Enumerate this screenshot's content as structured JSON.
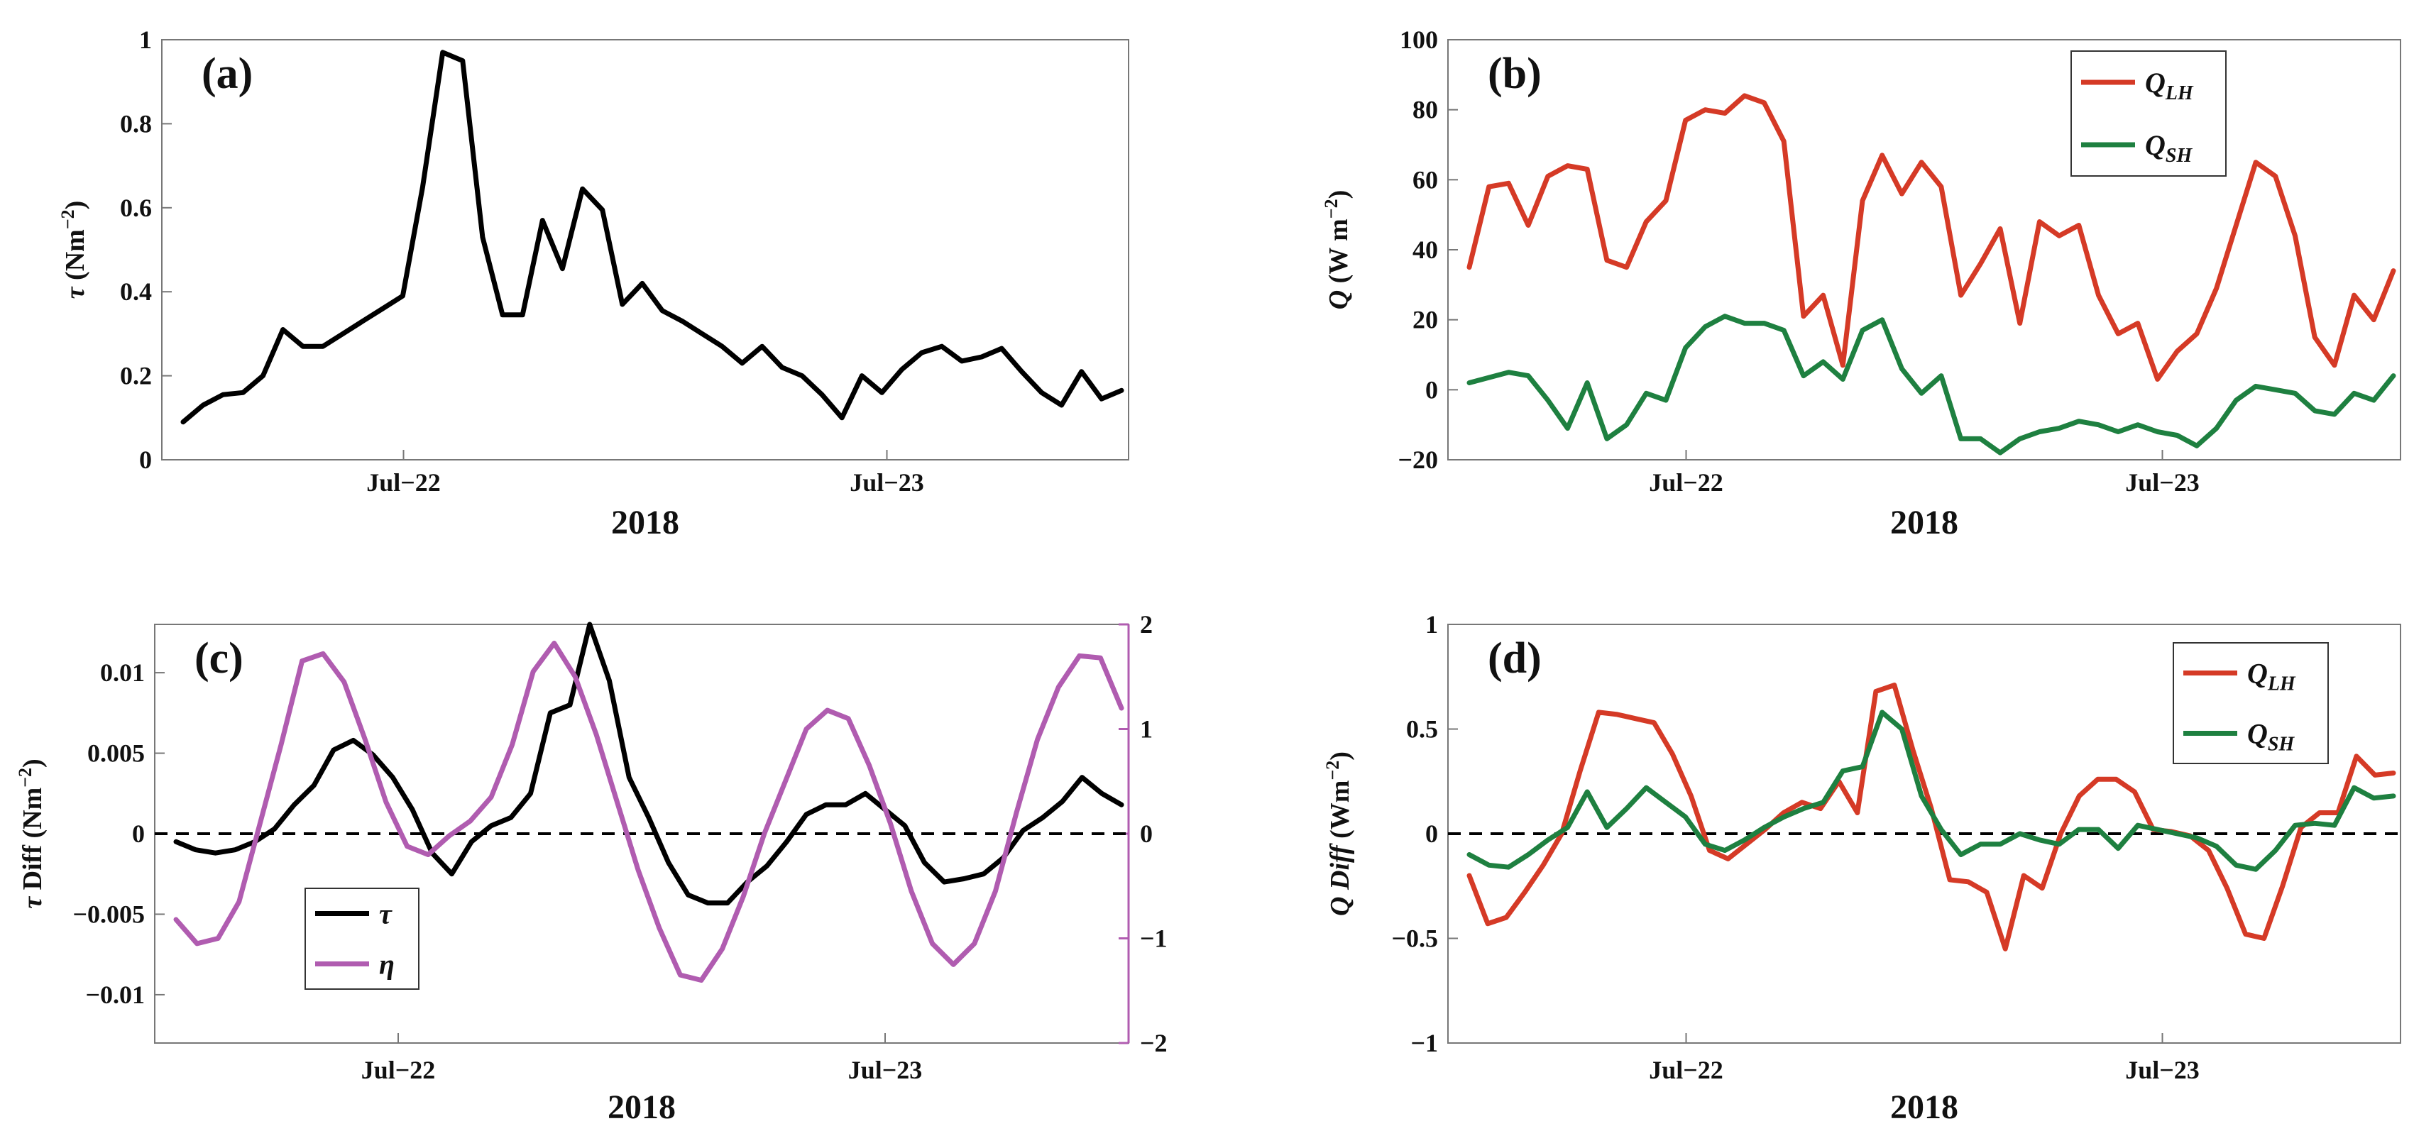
{
  "colors": {
    "black": "#000000",
    "red": "#d53a26",
    "green": "#1e8040",
    "purple": "#b05cb0",
    "axis": "#777777"
  },
  "chart_data": [
    {
      "id": "a",
      "type": "line",
      "panel_label": "(a)",
      "xlabel": "2018",
      "ylabel_main": "τ",
      "ylabel_unit": " (Nm",
      "ylabel_exp": "−2",
      "ylabel_close": ")",
      "xticks": [
        {
          "t": 0.25,
          "label": "Jul−22"
        },
        {
          "t": 0.75,
          "label": "Jul−23"
        }
      ],
      "ylim": [
        0,
        1
      ],
      "yticks": [
        {
          "v": 0,
          "label": "0"
        },
        {
          "v": 0.2,
          "label": "0.2"
        },
        {
          "v": 0.4,
          "label": "0.4"
        },
        {
          "v": 0.6,
          "label": "0.6"
        },
        {
          "v": 0.8,
          "label": "0.8"
        },
        {
          "v": 1,
          "label": "1"
        }
      ],
      "series": [
        {
          "name": "τ",
          "color": "black",
          "values": [
            0.09,
            0.13,
            0.155,
            0.16,
            0.2,
            0.31,
            0.27,
            0.27,
            0.3,
            0.33,
            0.36,
            0.39,
            0.65,
            0.97,
            0.95,
            0.53,
            0.345,
            0.345,
            0.57,
            0.455,
            0.645,
            0.595,
            0.37,
            0.42,
            0.355,
            0.33,
            0.3,
            0.27,
            0.23,
            0.27,
            0.22,
            0.2,
            0.155,
            0.1,
            0.2,
            0.16,
            0.215,
            0.255,
            0.27,
            0.235,
            0.245,
            0.265,
            0.21,
            0.16,
            0.13,
            0.21,
            0.145,
            0.165
          ]
        }
      ]
    },
    {
      "id": "b",
      "type": "line",
      "panel_label": "(b)",
      "xlabel": "2018",
      "ylabel_main": "Q",
      "ylabel_unit": " (W m",
      "ylabel_exp": "−2",
      "ylabel_close": ")",
      "xticks": [
        {
          "t": 0.25,
          "label": "Jul−22"
        },
        {
          "t": 0.75,
          "label": "Jul−23"
        }
      ],
      "ylim": [
        -20,
        100
      ],
      "yticks": [
        {
          "v": -20,
          "label": "−20"
        },
        {
          "v": 0,
          "label": "0"
        },
        {
          "v": 20,
          "label": "20"
        },
        {
          "v": 40,
          "label": "40"
        },
        {
          "v": 60,
          "label": "60"
        },
        {
          "v": 80,
          "label": "80"
        },
        {
          "v": 100,
          "label": "100"
        }
      ],
      "legend": [
        {
          "main": "Q",
          "sub": "LH",
          "color": "red"
        },
        {
          "main": "Q",
          "sub": "SH",
          "color": "green"
        }
      ],
      "series": [
        {
          "name": "Q_LH",
          "color": "red",
          "values": [
            35,
            58,
            59,
            47,
            61,
            64,
            63,
            37,
            35,
            48,
            54,
            77,
            80,
            79,
            84,
            82,
            71,
            21,
            27,
            7,
            54,
            67,
            56,
            65,
            58,
            27,
            36,
            46,
            19,
            48,
            44,
            47,
            27,
            16,
            19,
            3,
            11,
            16,
            29,
            47,
            65,
            61,
            44,
            15,
            7,
            27,
            20,
            34
          ]
        },
        {
          "name": "Q_SH",
          "color": "green",
          "values": [
            2,
            3.5,
            5,
            4,
            -3,
            -11,
            2,
            -14,
            -10,
            -1,
            -3,
            12,
            18,
            21,
            19,
            19,
            17,
            4,
            8,
            3,
            17,
            20,
            6,
            -1,
            4,
            -14,
            -14,
            -18,
            -14,
            -12,
            -11,
            -9,
            -10,
            -12,
            -10,
            -12,
            -13,
            -16,
            -11,
            -3,
            1,
            0,
            -1,
            -6,
            -7,
            -1,
            -3,
            4
          ]
        }
      ]
    },
    {
      "id": "c",
      "type": "line",
      "panel_label": "(c)",
      "xlabel": "2018",
      "ylabel_main": "τ",
      "ylabel_unit": " Diff (Nm",
      "ylabel_exp": "−2",
      "ylabel_close": ")",
      "xticks": [
        {
          "t": 0.25,
          "label": "Jul−22"
        },
        {
          "t": 0.75,
          "label": "Jul−23"
        }
      ],
      "ylim": [
        -0.013,
        0.013
      ],
      "yticks": [
        {
          "v": -0.01,
          "label": "−0.01"
        },
        {
          "v": -0.005,
          "label": "−0.005"
        },
        {
          "v": 0,
          "label": "0"
        },
        {
          "v": 0.005,
          "label": "0.005"
        },
        {
          "v": 0.01,
          "label": "0.01"
        }
      ],
      "y2lim": [
        -2,
        2
      ],
      "y2ticks": [
        {
          "v": -2,
          "label": "−2"
        },
        {
          "v": -1,
          "label": "−1"
        },
        {
          "v": 0,
          "label": "0"
        },
        {
          "v": 1,
          "label": "1"
        },
        {
          "v": 2,
          "label": "2"
        }
      ],
      "legend": [
        {
          "main": "τ",
          "sub": "",
          "color": "black"
        },
        {
          "main": "η",
          "sub": "",
          "color": "purple"
        }
      ],
      "series": [
        {
          "name": "τ",
          "color": "black",
          "axis": "left",
          "values": [
            -0.0005,
            -0.001,
            -0.0012,
            -0.001,
            -0.0005,
            0.0003,
            0.0018,
            0.003,
            0.0052,
            0.0058,
            0.0049,
            0.0035,
            0.0015,
            -0.0012,
            -0.0025,
            -0.0005,
            0.0005,
            0.001,
            0.0025,
            0.0075,
            0.008,
            0.013,
            0.0095,
            0.0035,
            0.001,
            -0.0018,
            -0.0038,
            -0.0043,
            -0.0043,
            -0.003,
            -0.002,
            -0.0005,
            0.0012,
            0.0018,
            0.0018,
            0.0025,
            0.0015,
            0.0005,
            -0.0018,
            -0.003,
            -0.0028,
            -0.0025,
            -0.0015,
            0.0002,
            0.001,
            0.002,
            0.0035,
            0.0025,
            0.0018
          ]
        },
        {
          "name": "η",
          "color": "purple",
          "axis": "right",
          "values": [
            -0.82,
            -1.05,
            -1.0,
            -0.65,
            0.1,
            0.85,
            1.65,
            1.72,
            1.45,
            0.9,
            0.3,
            -0.12,
            -0.2,
            -0.02,
            0.12,
            0.35,
            0.85,
            1.55,
            1.82,
            1.5,
            0.95,
            0.3,
            -0.35,
            -0.9,
            -1.35,
            -1.4,
            -1.1,
            -0.6,
            0.0,
            0.5,
            1.0,
            1.18,
            1.1,
            0.65,
            0.1,
            -0.55,
            -1.05,
            -1.25,
            -1.05,
            -0.55,
            0.2,
            0.9,
            1.4,
            1.7,
            1.68,
            1.2
          ]
        }
      ]
    },
    {
      "id": "d",
      "type": "line",
      "panel_label": "(d)",
      "xlabel": "2018",
      "ylabel_main": "Q Diff",
      "ylabel_unit": " (Wm",
      "ylabel_exp": "−2",
      "ylabel_close": ")",
      "xticks": [
        {
          "t": 0.25,
          "label": "Jul−22"
        },
        {
          "t": 0.75,
          "label": "Jul−23"
        }
      ],
      "ylim": [
        -1,
        1
      ],
      "yticks": [
        {
          "v": -1,
          "label": "−1"
        },
        {
          "v": -0.5,
          "label": "−0.5"
        },
        {
          "v": 0,
          "label": "0"
        },
        {
          "v": 0.5,
          "label": "0.5"
        },
        {
          "v": 1,
          "label": "1"
        }
      ],
      "legend": [
        {
          "main": "Q",
          "sub": "LH",
          "color": "red"
        },
        {
          "main": "Q",
          "sub": "SH",
          "color": "green"
        }
      ],
      "series": [
        {
          "name": "Q_LH",
          "color": "red",
          "values": [
            -0.2,
            -0.43,
            -0.4,
            -0.28,
            -0.15,
            0.0,
            0.3,
            0.58,
            0.57,
            0.55,
            0.53,
            0.38,
            0.18,
            -0.08,
            -0.12,
            -0.05,
            0.02,
            0.1,
            0.15,
            0.12,
            0.25,
            0.1,
            0.68,
            0.71,
            0.4,
            0.12,
            -0.22,
            -0.23,
            -0.28,
            -0.55,
            -0.2,
            -0.26,
            0.0,
            0.18,
            0.26,
            0.26,
            0.2,
            0.02,
            0.01,
            -0.01,
            -0.08,
            -0.26,
            -0.48,
            -0.5,
            -0.25,
            0.03,
            0.1,
            0.1,
            0.37,
            0.28,
            0.29
          ]
        },
        {
          "name": "Q_SH",
          "color": "green",
          "values": [
            -0.1,
            -0.15,
            -0.16,
            -0.1,
            -0.03,
            0.03,
            0.2,
            0.03,
            0.12,
            0.22,
            0.15,
            0.08,
            -0.05,
            -0.08,
            -0.03,
            0.03,
            0.08,
            0.12,
            0.15,
            0.3,
            0.32,
            0.58,
            0.5,
            0.18,
            0.02,
            -0.1,
            -0.05,
            -0.05,
            0.0,
            -0.03,
            -0.05,
            0.02,
            0.02,
            -0.07,
            0.04,
            0.02,
            0.0,
            -0.02,
            -0.06,
            -0.15,
            -0.17,
            -0.08,
            0.04,
            0.05,
            0.04,
            0.22,
            0.17,
            0.18
          ]
        }
      ]
    }
  ]
}
